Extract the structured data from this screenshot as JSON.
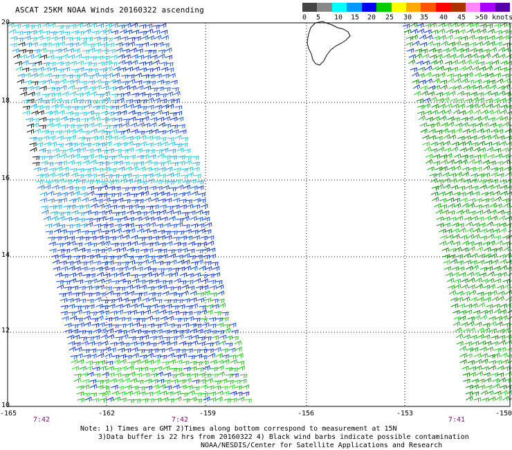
{
  "title": "ASCAT 25KM NOAA Winds 20160322 ascending",
  "legend": {
    "colors": [
      "#444444",
      "#888888",
      "#00ffff",
      "#0099ff",
      "#0000ee",
      "#00cc00",
      "#ffff00",
      "#ffaa00",
      "#ff5500",
      "#ff0000",
      "#aa3300",
      "#ff88ff",
      "#aa00ff",
      "#5500aa"
    ],
    "labels": [
      "0",
      "5",
      "10",
      "15",
      "20",
      "25",
      "30",
      "35",
      "40",
      "45",
      ">50 knots"
    ]
  },
  "axes": {
    "lon_labels": [
      "-165",
      "-162",
      "-159",
      "-156",
      "-153",
      "-150"
    ],
    "lat_labels": [
      "20",
      "18",
      "16",
      "14",
      "12",
      "10"
    ]
  },
  "pass_times": [
    "7:42",
    "7:42",
    "7:41"
  ],
  "notes": [
    "Note: 1) Times are GMT 2)Times along bottom correspond to measurement at 15N",
    "3)Data buffer is 22 hrs from 20160322 4) Black wind barbs indicate possible contamination",
    "NOAA/NESDIS/Center for Satellite Applications and Research"
  ]
}
